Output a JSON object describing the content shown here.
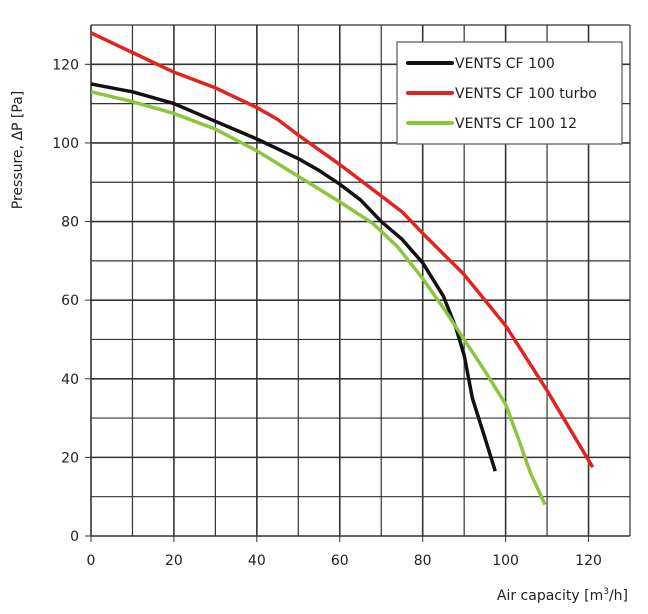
{
  "chart_data": {
    "type": "line",
    "title": "",
    "xlabel": "Air capacity [m³/h]",
    "xlabel_parts": {
      "prefix": "Air capacity [m",
      "sup": "3",
      "suffix": "/h]"
    },
    "ylabel": "Pressure, ΔP [Pa]",
    "xlim": [
      0,
      130
    ],
    "ylim": [
      0,
      130
    ],
    "xticks": [
      0,
      20,
      40,
      60,
      80,
      100,
      120
    ],
    "yticks": [
      0,
      20,
      40,
      60,
      80,
      100,
      120
    ],
    "grid": true,
    "grid_step": 10,
    "legend_position": "top-right",
    "series": [
      {
        "name": "VENTS CF 100",
        "color": "#111111",
        "x": [
          0,
          10,
          15,
          20,
          30,
          40,
          50,
          55,
          60,
          65,
          70,
          75,
          80,
          85,
          88,
          90,
          92,
          95,
          97.5
        ],
        "y": [
          115,
          113,
          111.5,
          110,
          105.5,
          101,
          96,
          93,
          89.5,
          85.5,
          80,
          75.5,
          69.5,
          61,
          53,
          46,
          35,
          25,
          16.5
        ]
      },
      {
        "name": "VENTS CF 100 turbo",
        "color": "#e32322",
        "x": [
          0,
          10,
          20,
          30,
          40,
          45,
          50,
          60,
          70,
          75,
          80,
          90,
          100,
          110,
          121
        ],
        "y": [
          128,
          123,
          118,
          114,
          109,
          106,
          102,
          94.5,
          86.5,
          82.5,
          77,
          66.5,
          53.5,
          37,
          17.5
        ]
      },
      {
        "name": "VENTS CF 100 12",
        "color": "#8cc63f",
        "x": [
          0,
          10,
          20,
          30,
          40,
          50,
          60,
          68,
          74,
          80,
          85,
          90,
          95,
          100,
          103,
          106,
          109.5
        ],
        "y": [
          113,
          110.5,
          107.5,
          103.5,
          98,
          91.5,
          85,
          79.5,
          73.5,
          65.5,
          58,
          50,
          42,
          33.5,
          25,
          16,
          8
        ]
      }
    ]
  }
}
